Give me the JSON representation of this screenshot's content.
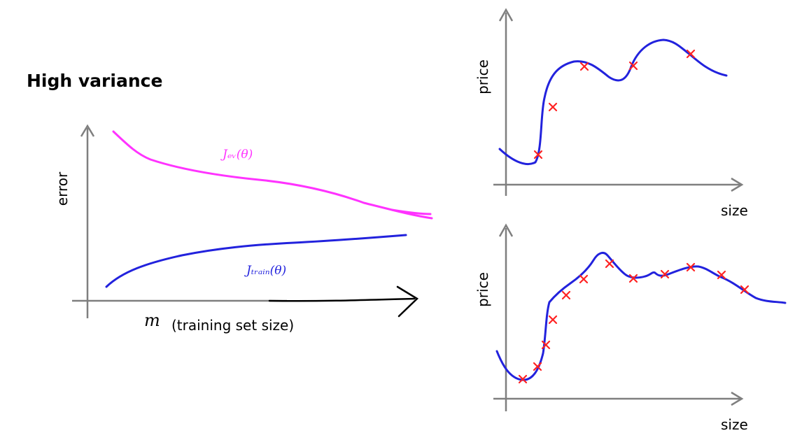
{
  "title": "High variance",
  "learning_curve": {
    "ylabel": "error",
    "xlabel_var": "m",
    "xlabel_text": "(training set size)",
    "cv_label": "Jₑᵥ(θ)",
    "train_label": "Jₜᵣₐᵢₙ(θ)",
    "cv_color": "#ff33ff",
    "train_color": "#2222dd"
  },
  "plot_top": {
    "ylabel": "price",
    "xlabel": "size",
    "point_count": 5
  },
  "plot_bottom": {
    "ylabel": "price",
    "xlabel": "size",
    "point_count": 14
  },
  "colors": {
    "axis": "#7f7f7f",
    "fit_curve": "#2222dd",
    "points": "#ff2222"
  }
}
